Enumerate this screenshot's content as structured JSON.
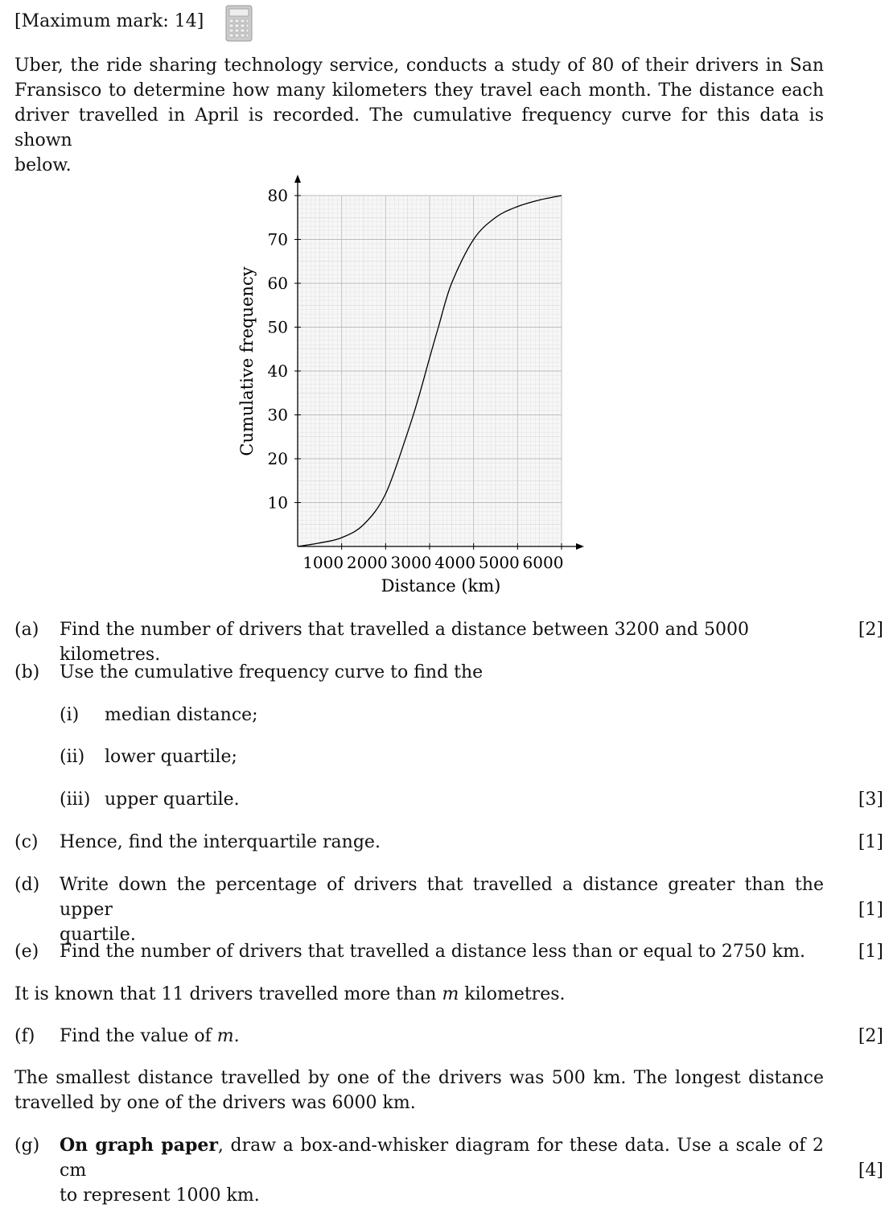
{
  "header": {
    "max_mark": "[Maximum mark: 14]",
    "calculator_icon": "calculator-icon"
  },
  "intro": {
    "lines": [
      "Uber, the ride sharing technology service, conducts a study of 80 of their drivers in San",
      "Fransisco to determine how many kilometers they travel each month.  The distance each",
      "driver travelled in April is recorded.  The cumulative frequency curve for this data is shown",
      "below."
    ]
  },
  "chart_data": {
    "type": "line",
    "xlabel": "Distance (km)",
    "ylabel": "Cumulative frequency",
    "xlim": [
      0,
      6000
    ],
    "ylim": [
      0,
      80
    ],
    "xticks": [
      "1000",
      "2000",
      "3000",
      "4000",
      "5000",
      "6000"
    ],
    "yticks": [
      "10",
      "20",
      "30",
      "40",
      "50",
      "60",
      "70",
      "80"
    ],
    "grid": true,
    "series": [
      {
        "x": [
          0,
          500,
          1000,
          1500,
          2000,
          2500,
          2750,
          3000,
          3200,
          3500,
          4000,
          4500,
          5000,
          5500,
          6000
        ],
        "y": [
          0,
          0.8,
          2,
          5,
          12,
          26,
          34,
          43,
          50,
          60,
          70,
          75,
          77.5,
          79,
          80
        ]
      }
    ]
  },
  "questions": {
    "a": {
      "label": "(a)",
      "text": "Find the number of drivers that travelled a distance between 3200 and 5000 kilometres.",
      "mark": "[2]"
    },
    "b": {
      "label": "(b)",
      "text": "Use the cumulative frequency curve to find the"
    },
    "b_i": {
      "label": "(i)",
      "text": "median distance;"
    },
    "b_ii": {
      "label": "(ii)",
      "text": "lower quartile;"
    },
    "b_iii": {
      "label": "(iii)",
      "text": "upper quartile.",
      "mark": "[3]"
    },
    "c": {
      "label": "(c)",
      "text": "Hence, find the interquartile range.",
      "mark": "[1]"
    },
    "d": {
      "label": "(d)",
      "line1": "Write down the percentage of drivers that travelled a distance greater than the upper",
      "line2": "quartile.",
      "mark": "[1]"
    },
    "e": {
      "label": "(e)",
      "text": "Find the number of drivers that travelled a distance less than or equal to 2750 km.",
      "mark": "[1]"
    },
    "stem_f": {
      "before": "It is known that 11 drivers travelled more than ",
      "var": "m",
      "after": " kilometres."
    },
    "f": {
      "label": "(f)",
      "before": "Find the value of ",
      "var": "m",
      "after": ".",
      "mark": "[2]"
    },
    "stem_g": {
      "lines": [
        "The smallest distance travelled by one of the drivers was 500 km.  The longest distance",
        "travelled by one of the drivers was 6000 km."
      ]
    },
    "g": {
      "label": "(g)",
      "bold": "On graph paper",
      "line1_rest": ", draw a box-and-whisker diagram for these data.  Use a scale of 2 cm",
      "line2": "to represent 1000 km.",
      "mark": "[4]"
    }
  }
}
